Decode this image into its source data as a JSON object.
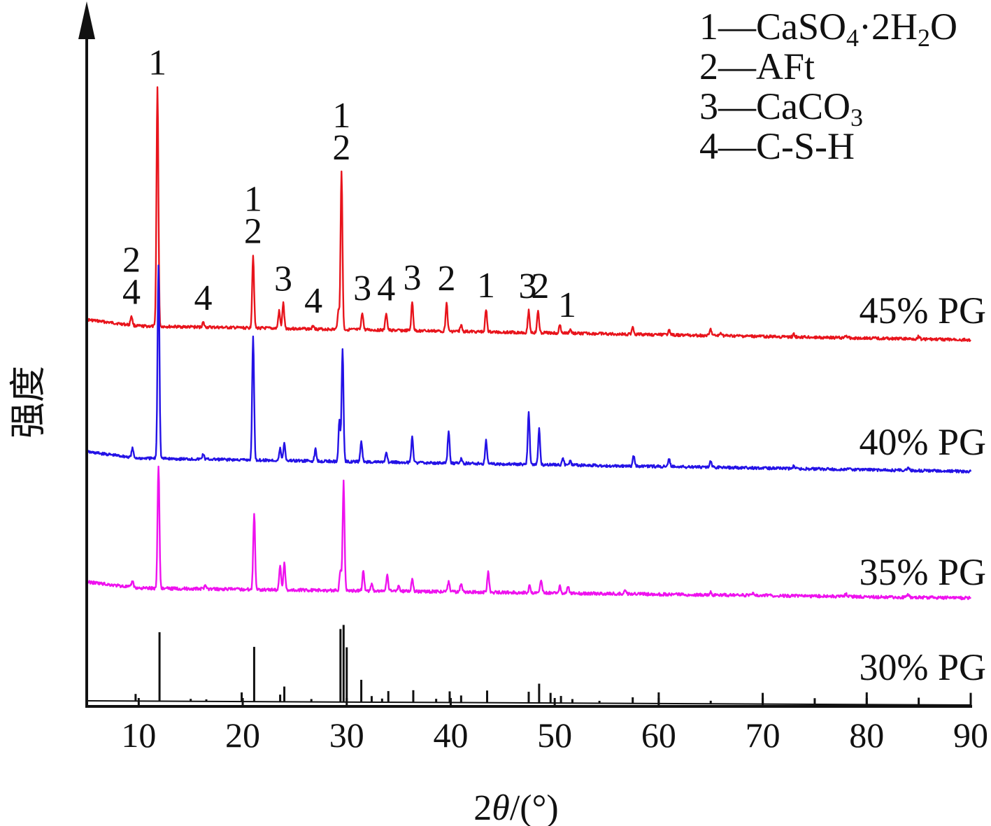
{
  "chart_data": {
    "type": "line",
    "xlabel_pre": "2",
    "xlabel_theta": "θ",
    "xlabel_post": "/(°)",
    "ylabel": "强度",
    "xlim": [
      5,
      90
    ],
    "x_ticks": [
      10,
      20,
      30,
      40,
      50,
      60,
      70,
      80,
      90
    ],
    "grid": false,
    "legend": [
      {
        "num": "1",
        "dash": "—",
        "parts": [
          [
            "CaSO",
            "n"
          ],
          [
            "4",
            "sub"
          ],
          [
            "·2H",
            "n"
          ],
          [
            "2",
            "sub"
          ],
          [
            "O",
            "n"
          ]
        ]
      },
      {
        "num": "2",
        "dash": "—",
        "parts": [
          [
            "AFt",
            "n"
          ]
        ]
      },
      {
        "num": "3",
        "dash": "—",
        "parts": [
          [
            "CaCO",
            "n"
          ],
          [
            "3",
            "sub"
          ]
        ]
      },
      {
        "num": "4",
        "dash": "—",
        "parts": [
          [
            "C-S-H",
            "n"
          ]
        ]
      }
    ],
    "series": [
      {
        "name": "45% PG",
        "color": "#e8141c",
        "style": "smooth",
        "peaks": [
          [
            9.3,
            30
          ],
          [
            11.8,
            760
          ],
          [
            16.2,
            15
          ],
          [
            21.0,
            230
          ],
          [
            23.5,
            55
          ],
          [
            23.9,
            80
          ],
          [
            26.8,
            12
          ],
          [
            29.2,
            60
          ],
          [
            29.5,
            500
          ],
          [
            31.5,
            55
          ],
          [
            33.8,
            55
          ],
          [
            36.3,
            90
          ],
          [
            39.6,
            90
          ],
          [
            41.0,
            20
          ],
          [
            43.4,
            70
          ],
          [
            47.5,
            70
          ],
          [
            48.4,
            70
          ],
          [
            50.5,
            25
          ],
          [
            51.5,
            12
          ],
          [
            57.5,
            25
          ],
          [
            61.0,
            20
          ],
          [
            65.0,
            20
          ],
          [
            66.0,
            10
          ],
          [
            73.0,
            8
          ],
          [
            78.0,
            8
          ],
          [
            85.0,
            10
          ]
        ]
      },
      {
        "name": "40% PG",
        "color": "#2412e6",
        "style": "smooth",
        "peaks": [
          [
            9.4,
            30
          ],
          [
            11.9,
            660
          ],
          [
            16.2,
            18
          ],
          [
            21.0,
            420
          ],
          [
            23.6,
            40
          ],
          [
            24.0,
            60
          ],
          [
            27.0,
            40
          ],
          [
            29.3,
            140
          ],
          [
            29.6,
            380
          ],
          [
            31.4,
            70
          ],
          [
            33.8,
            30
          ],
          [
            36.3,
            90
          ],
          [
            39.8,
            110
          ],
          [
            41.0,
            15
          ],
          [
            43.4,
            80
          ],
          [
            47.5,
            180
          ],
          [
            48.5,
            120
          ],
          [
            50.8,
            20
          ],
          [
            51.5,
            15
          ],
          [
            57.6,
            35
          ],
          [
            61.0,
            25
          ],
          [
            65.0,
            20
          ],
          [
            73.0,
            10
          ],
          [
            84.0,
            10
          ]
        ]
      },
      {
        "name": "35% PG",
        "color": "#ee12ee",
        "style": "smooth",
        "peaks": [
          [
            9.4,
            22
          ],
          [
            11.9,
            420
          ],
          [
            16.4,
            15
          ],
          [
            21.1,
            260
          ],
          [
            23.6,
            85
          ],
          [
            24.0,
            90
          ],
          [
            29.4,
            70
          ],
          [
            29.7,
            370
          ],
          [
            31.6,
            70
          ],
          [
            32.4,
            22
          ],
          [
            33.9,
            55
          ],
          [
            35.0,
            20
          ],
          [
            36.3,
            45
          ],
          [
            39.8,
            35
          ],
          [
            41.0,
            30
          ],
          [
            43.6,
            70
          ],
          [
            47.6,
            25
          ],
          [
            48.7,
            45
          ],
          [
            50.5,
            25
          ],
          [
            51.3,
            25
          ],
          [
            56.8,
            15
          ],
          [
            65.0,
            10
          ],
          [
            69.0,
            8
          ],
          [
            78.0,
            8
          ],
          [
            84.0,
            8
          ]
        ]
      },
      {
        "name": "30% PG",
        "color": "#111111",
        "style": "stick",
        "peaks": [
          [
            9.7,
            35
          ],
          [
            12.0,
            340
          ],
          [
            15.0,
            12
          ],
          [
            16.5,
            10
          ],
          [
            19.9,
            45
          ],
          [
            21.1,
            270
          ],
          [
            23.6,
            35
          ],
          [
            24.0,
            75
          ],
          [
            26.6,
            14
          ],
          [
            29.4,
            360
          ],
          [
            29.7,
            380
          ],
          [
            30.0,
            270
          ],
          [
            31.4,
            110
          ],
          [
            32.4,
            30
          ],
          [
            33.4,
            18
          ],
          [
            34.0,
            55
          ],
          [
            36.4,
            60
          ],
          [
            38.6,
            18
          ],
          [
            39.9,
            55
          ],
          [
            41.0,
            35
          ],
          [
            43.5,
            60
          ],
          [
            47.5,
            55
          ],
          [
            48.5,
            95
          ],
          [
            49.6,
            50
          ],
          [
            50.6,
            35
          ],
          [
            51.7,
            20
          ],
          [
            54.3,
            12
          ],
          [
            57.5,
            30
          ],
          [
            60.0,
            55
          ],
          [
            65.0,
            15
          ],
          [
            70.0,
            55
          ],
          [
            75.0,
            30
          ],
          [
            80.0,
            60
          ],
          [
            85.0,
            35
          ],
          [
            90.0,
            60
          ]
        ]
      }
    ],
    "annotations": [
      {
        "series": "45% PG",
        "x": 9.3,
        "text": [
          "2",
          "4"
        ]
      },
      {
        "series": "45% PG",
        "x": 11.8,
        "text": [
          "1"
        ]
      },
      {
        "series": "45% PG",
        "x": 16.2,
        "text": [
          "4"
        ]
      },
      {
        "series": "45% PG",
        "x": 21.0,
        "text": [
          "1",
          "2"
        ]
      },
      {
        "series": "45% PG",
        "x": 23.9,
        "text": [
          "3"
        ]
      },
      {
        "series": "45% PG",
        "x": 26.8,
        "text": [
          "4"
        ]
      },
      {
        "series": "45% PG",
        "x": 29.5,
        "text": [
          "1",
          "2"
        ]
      },
      {
        "series": "45% PG",
        "x": 31.5,
        "text": [
          "3"
        ]
      },
      {
        "series": "45% PG",
        "x": 33.8,
        "text": [
          "4"
        ]
      },
      {
        "series": "45% PG",
        "x": 36.3,
        "text": [
          "3"
        ]
      },
      {
        "series": "45% PG",
        "x": 39.6,
        "text": [
          "2"
        ]
      },
      {
        "series": "45% PG",
        "x": 43.4,
        "text": [
          "1"
        ]
      },
      {
        "series": "45% PG",
        "x": 47.4,
        "text": [
          "3"
        ]
      },
      {
        "series": "45% PG",
        "x": 48.6,
        "text": [
          "2"
        ]
      },
      {
        "series": "45% PG",
        "x": 51.2,
        "text": [
          "1"
        ]
      }
    ]
  }
}
